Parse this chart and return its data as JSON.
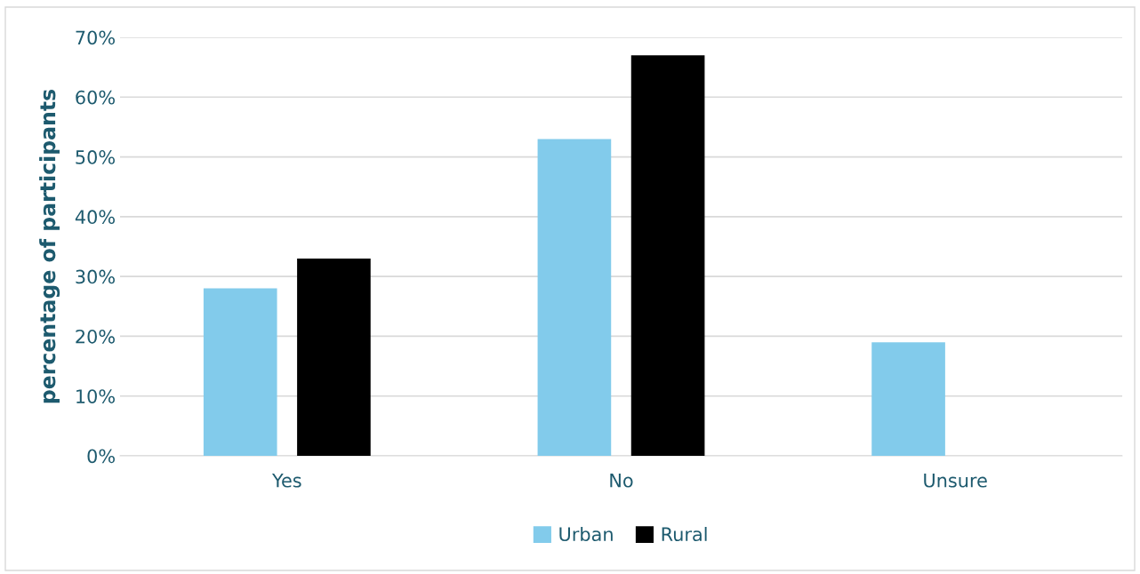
{
  "chart_data": {
    "type": "bar",
    "ylabel": "percentage of participants",
    "categories": [
      "Yes",
      "No",
      "Unsure"
    ],
    "series": [
      {
        "name": "Urban",
        "color": "#82cbeb",
        "values": [
          28,
          53,
          19
        ]
      },
      {
        "name": "Rural",
        "color": "#000000",
        "values": [
          33,
          67,
          0
        ]
      }
    ],
    "ylim": [
      0,
      70
    ],
    "yticks": [
      {
        "value": 0,
        "label": "0%"
      },
      {
        "value": 10,
        "label": "10%"
      },
      {
        "value": 20,
        "label": "20%"
      },
      {
        "value": 30,
        "label": "30%"
      },
      {
        "value": 40,
        "label": "40%"
      },
      {
        "value": 50,
        "label": "50%"
      },
      {
        "value": 60,
        "label": "60%"
      },
      {
        "value": 70,
        "label": "70%"
      }
    ],
    "grid": "y",
    "legend": "bottom"
  }
}
